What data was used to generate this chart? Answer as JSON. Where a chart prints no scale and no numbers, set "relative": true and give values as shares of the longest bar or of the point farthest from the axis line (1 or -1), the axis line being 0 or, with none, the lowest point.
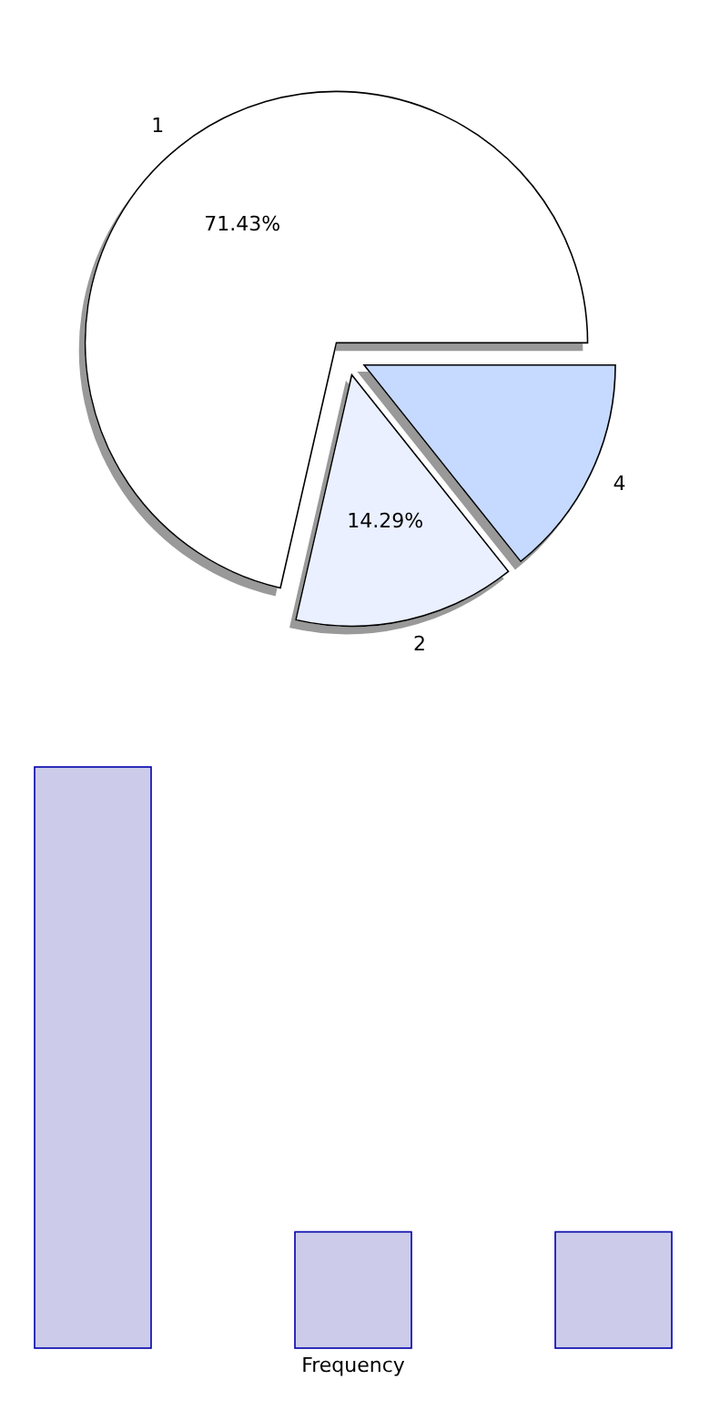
{
  "chart_data": [
    {
      "type": "pie",
      "categories": [
        "1",
        "2",
        "4"
      ],
      "values": [
        71.43,
        14.29,
        14.29
      ],
      "colors": [
        "#ffffff",
        "#eaf0ff",
        "#c6d9ff"
      ],
      "value_labels": [
        "71.43%",
        "14.29%",
        null
      ]
    },
    {
      "type": "bar",
      "categories": [
        null,
        null,
        null
      ],
      "values": [
        1,
        0.2,
        0.2
      ],
      "relative": true,
      "color": "#ccccea",
      "xlabel": "Frequency"
    }
  ]
}
